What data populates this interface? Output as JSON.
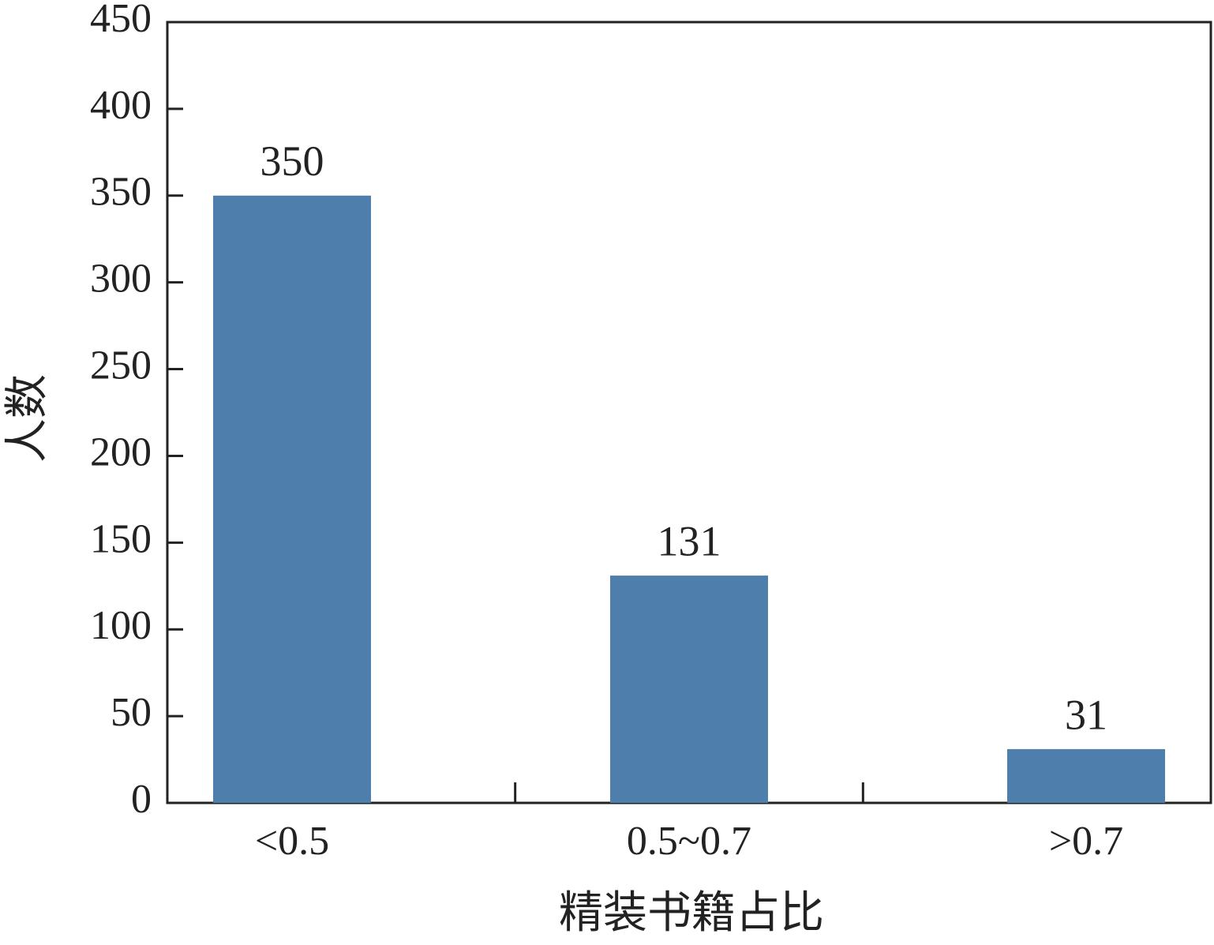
{
  "chart_data": {
    "type": "bar",
    "x_label": "精装书籍占比",
    "y_label": "人数",
    "categories": [
      "<0.5",
      "0.5~0.7",
      ">0.7"
    ],
    "values": [
      350,
      131,
      31
    ],
    "color": "#4e7eab",
    "ylim": [
      0,
      450
    ],
    "yticks": [
      0,
      50,
      100,
      150,
      200,
      250,
      300,
      350,
      400,
      450
    ]
  }
}
